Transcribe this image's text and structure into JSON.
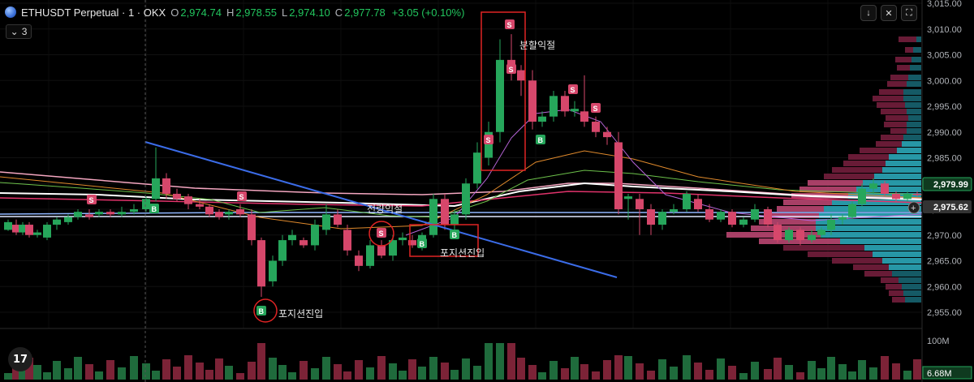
{
  "header": {
    "symbol": "ETHUSDT Perpetual · 1 · OKX",
    "open_label": "O",
    "open": "2,974.74",
    "high_label": "H",
    "high": "2,978.55",
    "low_label": "L",
    "low": "2,974.10",
    "close_label": "C",
    "close": "2,977.78",
    "change": "+3.05 (+0.10%)"
  },
  "indicator_badge": "3",
  "toolbar": {
    "down_icon": "arrow-down-icon",
    "collapse_icon": "collapse-icon",
    "fullscreen_icon": "fullscreen-icon"
  },
  "price_axis": {
    "ticks": [
      "3,015.00",
      "3,010.00",
      "3,005.00",
      "3,000.00",
      "2,995.00",
      "2,990.00",
      "2,985.00",
      "2,980.00",
      "2,975.00",
      "2,970.00",
      "2,965.00",
      "2,960.00",
      "2,955.00"
    ],
    "price_tag_green": "2,979.99",
    "price_tag_current": "2,975.62"
  },
  "volume_axis": {
    "top": "100M",
    "current": "6.68M"
  },
  "annotations": {
    "split_exit": "분할익절",
    "full_exit": "전량익절",
    "entry_mid": "포지션진입",
    "entry_low": "포지션진입"
  },
  "signals": {
    "buy": "B",
    "sell": "S"
  },
  "colors": {
    "up": "#26a65b",
    "down": "#d6476b",
    "trend": "#3b6ce8",
    "box": "#e02424"
  },
  "tv_logo": "17"
}
